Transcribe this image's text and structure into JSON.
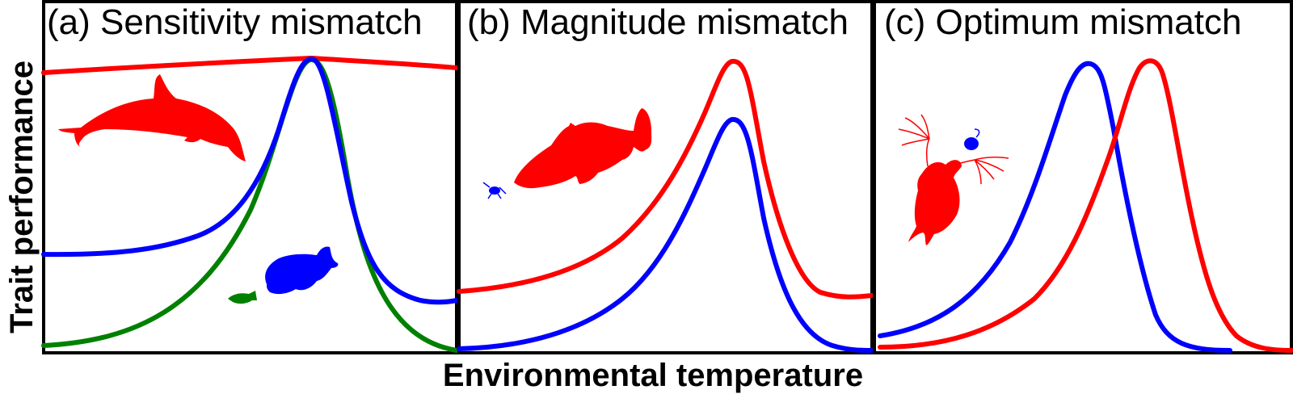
{
  "figure": {
    "xlabel": "Environmental temperature",
    "ylabel": "Trait performance"
  },
  "colors": {
    "red": "#ff0000",
    "blue": "#0000ff",
    "green": "#008000"
  },
  "panels": [
    {
      "title": "(a) Sensitivity mismatch",
      "curves": [
        "red",
        "blue",
        "green"
      ],
      "icons": [
        "dolphin-icon",
        "large-fish-icon",
        "small-fish-icon"
      ]
    },
    {
      "title": "(b) Magnitude mismatch",
      "curves": [
        "red",
        "blue"
      ],
      "icons": [
        "grouper-icon",
        "copepod-icon"
      ]
    },
    {
      "title": "(c) Optimum mismatch",
      "curves": [
        "blue",
        "red"
      ],
      "icons": [
        "zooplankton-icon",
        "algae-cell-icon"
      ]
    }
  ]
}
